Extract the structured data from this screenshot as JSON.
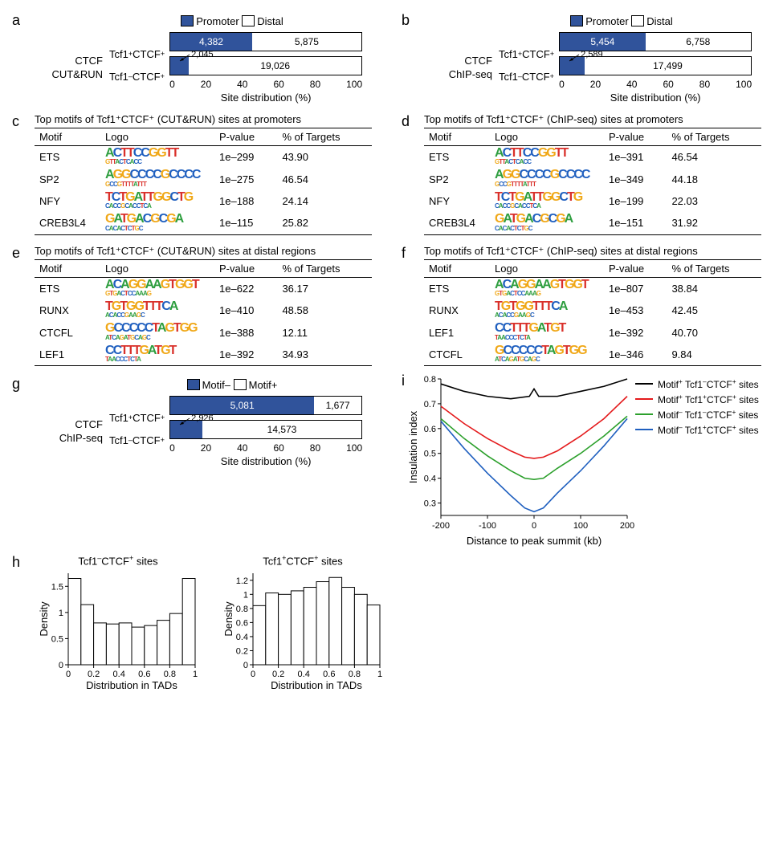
{
  "colors": {
    "promoter_fill": "#30539b",
    "distal_fill": "#ffffff",
    "border": "#000000",
    "nt_A": "#2e9e3f",
    "nt_C": "#1f5fbf",
    "nt_G": "#f0a818",
    "nt_T": "#d9302a"
  },
  "panel_a": {
    "label": "a",
    "y_category_label": "CTCF\nCUT&RUN",
    "legend": [
      {
        "key": "promoter",
        "label": "Promoter",
        "fill": "#30539b"
      },
      {
        "key": "distal",
        "label": "Distal",
        "fill": "#ffffff"
      }
    ],
    "rows": [
      {
        "name": "Tcf1⁺CTCF⁺",
        "promoter_value": 4382,
        "promoter_label": "4,382",
        "promoter_pct": 42.7,
        "distal_value": 5875,
        "distal_label": "5,875",
        "distal_pct": 57.3
      },
      {
        "name": "Tcf1⁻CTCF⁺",
        "promoter_value": 2045,
        "promoter_label": "2,045",
        "promoter_pct": 9.7,
        "distal_value": 19026,
        "distal_label": "19,026",
        "distal_pct": 90.3,
        "promoter_callout": true
      }
    ],
    "x_ticks": [
      0,
      20,
      40,
      60,
      80,
      100
    ],
    "x_label": "Site distribution (%)"
  },
  "panel_b": {
    "label": "b",
    "y_category_label": "CTCF\nChIP-seq",
    "legend": [
      {
        "key": "promoter",
        "label": "Promoter",
        "fill": "#30539b"
      },
      {
        "key": "distal",
        "label": "Distal",
        "fill": "#ffffff"
      }
    ],
    "rows": [
      {
        "name": "Tcf1⁺CTCF⁺",
        "promoter_value": 5454,
        "promoter_label": "5,454",
        "promoter_pct": 44.7,
        "distal_value": 6758,
        "distal_label": "6,758",
        "distal_pct": 55.3
      },
      {
        "name": "Tcf1⁻CTCF⁺",
        "promoter_value": 2589,
        "promoter_label": "2,589",
        "promoter_pct": 12.9,
        "distal_value": 17499,
        "distal_label": "17,499",
        "distal_pct": 87.1,
        "promoter_callout": true
      }
    ],
    "x_ticks": [
      0,
      20,
      40,
      60,
      80,
      100
    ],
    "x_label": "Site distribution (%)"
  },
  "panel_c": {
    "label": "c",
    "title": "Top motifs of Tcf1⁺CTCF⁺ (CUT&RUN) sites at promoters",
    "columns": [
      "Motif",
      "Logo",
      "P-value",
      "% of Targets"
    ],
    "rows": [
      {
        "motif": "ETS",
        "logo_big": "ACTTCCGGTT",
        "logo_small": "GTTACTCACC",
        "pvalue": "1e–299",
        "targets": "43.90"
      },
      {
        "motif": "SP2",
        "logo_big": "AGGCCCCGCCCC",
        "logo_small": "GCCGTTTTATTT",
        "pvalue": "1e–275",
        "targets": "46.54"
      },
      {
        "motif": "NFY",
        "logo_big": "TCTGATTGGCTG",
        "logo_small": "CACCGCACCTCA",
        "pvalue": "1e–188",
        "targets": "24.14"
      },
      {
        "motif": "CREB3L4",
        "logo_big": "GATGACGCGA",
        "logo_small": "CACACTCTGC",
        "pvalue": "1e–115",
        "targets": "25.82"
      }
    ]
  },
  "panel_d": {
    "label": "d",
    "title": "Top motifs of Tcf1⁺CTCF⁺ (ChIP-seq) sites at promoters",
    "columns": [
      "Motif",
      "Logo",
      "P-value",
      "% of Targets"
    ],
    "rows": [
      {
        "motif": "ETS",
        "logo_big": "ACTTCCGGTT",
        "logo_small": "GTTACTCACC",
        "pvalue": "1e–391",
        "targets": "46.54"
      },
      {
        "motif": "SP2",
        "logo_big": "AGGCCCCGCCCC",
        "logo_small": "GCCGTTTTATTT",
        "pvalue": "1e–349",
        "targets": "44.18"
      },
      {
        "motif": "NFY",
        "logo_big": "TCTGATTGGCTG",
        "logo_small": "CACCGCACCTCA",
        "pvalue": "1e–199",
        "targets": "22.03"
      },
      {
        "motif": "CREB3L4",
        "logo_big": "GATGACGCGA",
        "logo_small": "CACACTCTGC",
        "pvalue": "1e–151",
        "targets": "31.92"
      }
    ]
  },
  "panel_e": {
    "label": "e",
    "title": "Top motifs of Tcf1⁺CTCF⁺ (CUT&RUN) sites at distal regions",
    "columns": [
      "Motif",
      "Logo",
      "P-value",
      "% of Targets"
    ],
    "rows": [
      {
        "motif": "ETS",
        "logo_big": "ACAGGAAGTGGT",
        "logo_small": "GTGACTCCAAAG",
        "pvalue": "1e–622",
        "targets": "36.17"
      },
      {
        "motif": "RUNX",
        "logo_big": "TGTGGTTTCA",
        "logo_small": "ACACCGAAGC",
        "pvalue": "1e–410",
        "targets": "48.58"
      },
      {
        "motif": "CTCFL",
        "logo_big": "GCCCCCTAGTGG",
        "logo_small": "ATCAGATGCAGC",
        "pvalue": "1e–388",
        "targets": "12.11"
      },
      {
        "motif": "LEF1",
        "logo_big": "CCTTTGATGT",
        "logo_small": "TAACCCTCTA",
        "pvalue": "1e–392",
        "targets": "34.93"
      }
    ]
  },
  "panel_f": {
    "label": "f",
    "title": "Top motifs of Tcf1⁺CTCF⁺ (ChIP-seq) sites at distal regions",
    "columns": [
      "Motif",
      "Logo",
      "P-value",
      "% of Targets"
    ],
    "rows": [
      {
        "motif": "ETS",
        "logo_big": "ACAGGAAGTGGT",
        "logo_small": "GTGACTCCAAAG",
        "pvalue": "1e–807",
        "targets": "38.84"
      },
      {
        "motif": "RUNX",
        "logo_big": "TGTGGTTTCA",
        "logo_small": "ACACCGAAGC",
        "pvalue": "1e–453",
        "targets": "42.45"
      },
      {
        "motif": "LEF1",
        "logo_big": "CCTTTGATGT",
        "logo_small": "TAACCCTCTA",
        "pvalue": "1e–392",
        "targets": "40.70"
      },
      {
        "motif": "CTCFL",
        "logo_big": "GCCCCCTAGTGG",
        "logo_small": "ATCAGATGCAGC",
        "pvalue": "1e–346",
        "targets": "9.84"
      }
    ]
  },
  "panel_g": {
    "label": "g",
    "y_category_label": "CTCF\nChIP-seq",
    "legend": [
      {
        "key": "motifminus",
        "label": "Motif–",
        "fill": "#30539b"
      },
      {
        "key": "motifplus",
        "label": "Motif+",
        "fill": "#ffffff"
      }
    ],
    "rows": [
      {
        "name": "Tcf1⁺CTCF⁺",
        "promoter_value": 5081,
        "promoter_label": "5,081",
        "promoter_pct": 75.2,
        "distal_value": 1677,
        "distal_label": "1,677",
        "distal_pct": 24.8
      },
      {
        "name": "Tcf1⁻CTCF⁺",
        "promoter_value": 2926,
        "promoter_label": "2,926",
        "promoter_pct": 16.7,
        "distal_value": 14573,
        "distal_label": "14,573",
        "distal_pct": 83.3,
        "promoter_callout": true
      }
    ],
    "x_ticks": [
      0,
      20,
      40,
      60,
      80,
      100
    ],
    "x_label": "Site distribution (%)"
  },
  "panel_h": {
    "label": "h",
    "x_label": "Distribution in TADs",
    "y_label": "Density",
    "plots": [
      {
        "title": "Tcf1⁻CTCF⁺ sites",
        "y_ticks": [
          0,
          0.5,
          1.0,
          1.5
        ],
        "y_max": 1.75,
        "x_ticks": [
          0,
          0.2,
          0.4,
          0.6,
          0.8,
          1
        ],
        "bars": [
          1.65,
          1.15,
          0.8,
          0.78,
          0.8,
          0.72,
          0.75,
          0.85,
          0.98,
          1.65
        ]
      },
      {
        "title": "Tcf1⁺CTCF⁺ sites",
        "y_ticks": [
          0,
          0.2,
          0.4,
          0.6,
          0.8,
          1.0,
          1.2
        ],
        "y_max": 1.3,
        "x_ticks": [
          0,
          0.2,
          0.4,
          0.6,
          0.8,
          1
        ],
        "bars": [
          0.84,
          1.02,
          1.0,
          1.05,
          1.1,
          1.18,
          1.24,
          1.1,
          1.0,
          0.85
        ]
      }
    ]
  },
  "panel_i": {
    "label": "i",
    "x_label": "Distance to peak summit (kb)",
    "y_label": "Insulation index",
    "xlim": [
      -200,
      200
    ],
    "ylim": [
      0.25,
      0.8
    ],
    "x_ticks": [
      -200,
      -100,
      0,
      100,
      200
    ],
    "y_ticks": [
      0.3,
      0.4,
      0.5,
      0.6,
      0.7,
      0.8
    ],
    "legend": [
      {
        "label": "Motif⁺ Tcf1⁻CTCF⁺ sites",
        "color": "#000000"
      },
      {
        "label": "Motif⁺ Tcf1⁺CTCF⁺ sites",
        "color": "#e41a1c"
      },
      {
        "label": "Motif⁻ Tcf1⁻CTCF⁺ sites",
        "color": "#2ca02c"
      },
      {
        "label": "Motif⁻ Tcf1⁺CTCF⁺ sites",
        "color": "#1f5fbf"
      }
    ],
    "series": [
      {
        "color": "#000000",
        "points": [
          [
            -200,
            0.78
          ],
          [
            -150,
            0.75
          ],
          [
            -100,
            0.73
          ],
          [
            -50,
            0.72
          ],
          [
            -10,
            0.73
          ],
          [
            0,
            0.76
          ],
          [
            10,
            0.73
          ],
          [
            50,
            0.73
          ],
          [
            100,
            0.75
          ],
          [
            150,
            0.77
          ],
          [
            200,
            0.8
          ]
        ]
      },
      {
        "color": "#e41a1c",
        "points": [
          [
            -200,
            0.69
          ],
          [
            -150,
            0.62
          ],
          [
            -100,
            0.56
          ],
          [
            -50,
            0.51
          ],
          [
            -20,
            0.485
          ],
          [
            0,
            0.48
          ],
          [
            20,
            0.485
          ],
          [
            50,
            0.51
          ],
          [
            100,
            0.57
          ],
          [
            150,
            0.64
          ],
          [
            200,
            0.73
          ]
        ]
      },
      {
        "color": "#2ca02c",
        "points": [
          [
            -200,
            0.64
          ],
          [
            -150,
            0.56
          ],
          [
            -100,
            0.49
          ],
          [
            -50,
            0.43
          ],
          [
            -20,
            0.4
          ],
          [
            0,
            0.395
          ],
          [
            20,
            0.4
          ],
          [
            50,
            0.44
          ],
          [
            100,
            0.5
          ],
          [
            150,
            0.57
          ],
          [
            200,
            0.65
          ]
        ]
      },
      {
        "color": "#1f5fbf",
        "points": [
          [
            -200,
            0.63
          ],
          [
            -150,
            0.52
          ],
          [
            -100,
            0.42
          ],
          [
            -50,
            0.33
          ],
          [
            -20,
            0.28
          ],
          [
            0,
            0.265
          ],
          [
            20,
            0.28
          ],
          [
            50,
            0.34
          ],
          [
            100,
            0.43
          ],
          [
            150,
            0.53
          ],
          [
            200,
            0.64
          ]
        ]
      }
    ]
  }
}
